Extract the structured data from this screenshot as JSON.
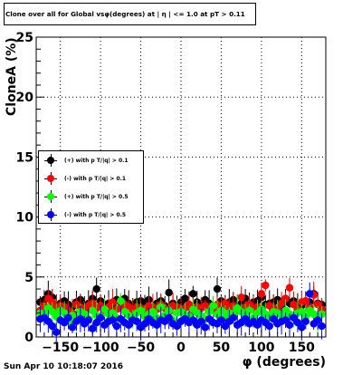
{
  "header": {
    "title": "Clone  over all for Global vsφ(degrees) at | η | <= 1.0 at pT > 0.11"
  },
  "footer": {
    "timestamp": "Sun Apr 10 10:18:07 2016"
  },
  "chart_data": {
    "type": "scatter",
    "title": "Clone  over all for Global vsφ(degrees) at | η | <= 1.0 at pT > 0.11",
    "xlabel": "φ (degrees)",
    "ylabel": "CloneA (%)",
    "xlim": [
      -180,
      180
    ],
    "ylim": [
      0,
      25
    ],
    "xticks": [
      -150,
      -100,
      -50,
      0,
      50,
      100,
      150
    ],
    "yticks": [
      0,
      5,
      10,
      15,
      20,
      25
    ],
    "grid": true,
    "legend_position": "middle-left",
    "error_bars": true,
    "x": [
      -175,
      -170,
      -165,
      -160,
      -155,
      -150,
      -145,
      -140,
      -135,
      -130,
      -125,
      -120,
      -115,
      -110,
      -105,
      -100,
      -95,
      -90,
      -85,
      -80,
      -75,
      -70,
      -65,
      -60,
      -55,
      -50,
      -45,
      -40,
      -35,
      -30,
      -25,
      -20,
      -15,
      -10,
      -5,
      0,
      5,
      10,
      15,
      20,
      25,
      30,
      35,
      40,
      45,
      50,
      55,
      60,
      65,
      70,
      75,
      80,
      85,
      90,
      95,
      100,
      105,
      110,
      115,
      120,
      125,
      130,
      135,
      140,
      145,
      150,
      155,
      160,
      165,
      170,
      175
    ],
    "series": [
      {
        "name": "(+) with p T/|q| > 0.1",
        "color": "#000000",
        "values": [
          2.9,
          3.1,
          3.6,
          3.3,
          2.6,
          2.8,
          3.0,
          2.7,
          2.5,
          2.9,
          3.1,
          2.6,
          2.8,
          3.2,
          4.0,
          3.0,
          2.7,
          2.8,
          2.6,
          3.1,
          2.9,
          3.2,
          2.8,
          2.6,
          2.9,
          3.0,
          2.7,
          3.1,
          2.5,
          2.8,
          3.0,
          2.6,
          3.7,
          2.8,
          2.5,
          2.9,
          3.2,
          2.7,
          3.6,
          2.9,
          2.6,
          3.1,
          2.8,
          2.6,
          4.0,
          3.0,
          2.7,
          2.9,
          3.1,
          2.6,
          2.8,
          3.2,
          2.6,
          2.9,
          3.0,
          3.3,
          2.7,
          2.8,
          2.9,
          3.1,
          2.6,
          3.2,
          2.8,
          3.0,
          2.7,
          2.6,
          3.0,
          2.9,
          3.6,
          2.8,
          2.7
        ]
      },
      {
        "name": "(-) with p T/|q| > 0.1",
        "color": "#ff0000",
        "values": [
          2.2,
          2.6,
          3.2,
          2.9,
          2.4,
          2.6,
          2.5,
          2.2,
          2.0,
          2.7,
          2.5,
          2.3,
          2.6,
          2.8,
          2.4,
          2.6,
          2.2,
          2.5,
          2.9,
          2.3,
          2.4,
          2.7,
          2.5,
          2.1,
          2.5,
          2.4,
          2.2,
          2.6,
          2.5,
          2.3,
          2.7,
          2.4,
          2.1,
          2.6,
          2.5,
          2.3,
          2.4,
          2.7,
          2.2,
          2.5,
          2.4,
          2.6,
          2.1,
          2.3,
          2.7,
          2.5,
          2.8,
          2.4,
          2.6,
          2.2,
          3.3,
          2.5,
          2.7,
          2.3,
          2.5,
          3.6,
          4.3,
          2.6,
          2.4,
          2.3,
          2.8,
          3.2,
          4.1,
          2.7,
          2.3,
          2.9,
          3.0,
          2.5,
          3.5,
          2.7,
          2.3
        ]
      },
      {
        "name": "(+) with p T/|q| > 0.5",
        "color": "#00ff00",
        "values": [
          2.0,
          1.9,
          2.4,
          2.1,
          1.7,
          2.2,
          2.0,
          1.3,
          1.8,
          1.6,
          2.1,
          1.9,
          1.5,
          2.2,
          1.8,
          1.7,
          2.3,
          1.9,
          2.0,
          1.6,
          3.0,
          2.1,
          1.8,
          1.5,
          2.0,
          2.2,
          1.7,
          1.9,
          2.1,
          1.6,
          2.5,
          1.8,
          2.2,
          1.4,
          2.0,
          2.1,
          1.9,
          1.7,
          2.3,
          2.0,
          1.8,
          1.5,
          2.1,
          2.6,
          1.9,
          2.2,
          1.7,
          2.0,
          1.9,
          2.4,
          2.1,
          1.8,
          2.2,
          1.6,
          2.0,
          2.3,
          1.9,
          1.7,
          2.1,
          2.0,
          1.8,
          2.2,
          1.9,
          1.6,
          2.0,
          2.1,
          1.7,
          2.2,
          1.9,
          1.5,
          1.9
        ]
      },
      {
        "name": "(-) with p T/|q| > 0.5",
        "color": "#0000ff",
        "values": [
          1.5,
          1.6,
          1.3,
          0.9,
          0.4,
          1.4,
          1.2,
          1.6,
          0.8,
          1.3,
          1.5,
          1.1,
          1.4,
          0.7,
          1.2,
          1.6,
          1.0,
          1.3,
          1.4,
          0.9,
          1.5,
          1.2,
          1.0,
          1.4,
          1.3,
          0.8,
          1.1,
          1.5,
          1.2,
          1.0,
          1.4,
          1.3,
          1.6,
          1.1,
          0.9,
          1.3,
          1.5,
          1.2,
          1.4,
          1.0,
          1.3,
          0.8,
          1.5,
          1.2,
          1.1,
          1.4,
          0.9,
          1.3,
          1.6,
          1.0,
          1.2,
          1.5,
          1.1,
          1.3,
          1.0,
          1.4,
          1.2,
          0.9,
          1.5,
          1.1,
          1.3,
          1.4,
          1.0,
          1.6,
          1.2,
          0.8,
          1.3,
          3.6,
          1.1,
          1.4,
          0.9
        ]
      }
    ]
  }
}
